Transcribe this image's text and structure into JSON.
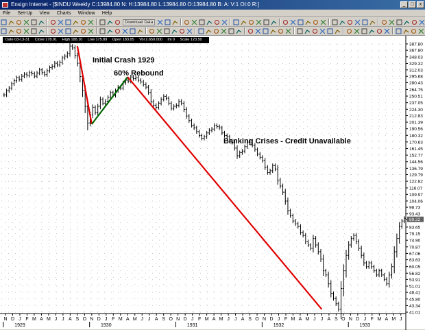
{
  "window": {
    "title": "Ensign Internet - [$INDU Weekly C:13984.80 N: H:13984.80 L:13984.80 O:13984.80 B: A: V:1 OI:0 R:]",
    "minimize": "_",
    "maximize": "□",
    "close": "x"
  },
  "menu": [
    "File",
    "Set-Up",
    "View",
    "Charts",
    "Window",
    "Help"
  ],
  "toolbar": {
    "download_label": "Download Data",
    "combo_value": ""
  },
  "infobar": {
    "date": "Date 03-13-31",
    "close": "Close 178.91",
    "high": "High 188.10",
    "low": "Low 175.89",
    "open": "Open 183.85",
    "vol": "Vol 2.650.000",
    "int": "Int 0",
    "scale": "Scale 123.50"
  },
  "annotations": {
    "initial_crash": "Initial Crash 1929",
    "rebound": "60% Rebound",
    "banking": "Banking Crises - Credit Unavailable"
  },
  "chart_data": {
    "type": "bar",
    "title": "",
    "price_axis_labels": [
      "387.80",
      "367.80",
      "348.03",
      "329.32",
      "312.03",
      "295.68",
      "280.43",
      "264.75",
      "250.51",
      "237.05",
      "224.30",
      "212.83",
      "201.39",
      "190.56",
      "180.32",
      "170.63",
      "161.45",
      "152.77",
      "144.56",
      "136.79",
      "129.79",
      "122.82",
      "116.07",
      "109.97",
      "104.06",
      "98.73",
      "93.43",
      "89.22",
      "83.65",
      "79.15",
      "74.90",
      "70.87",
      "67.06",
      "63.63",
      "60.05",
      "56.82",
      "53.91",
      "51.01",
      "48.41",
      "45.80",
      "43.34",
      "41.01"
    ],
    "current_price": "89.22",
    "x_month_labels": [
      "N",
      "D",
      "J",
      "F",
      "M",
      "A",
      "M",
      "J",
      "J",
      "A",
      "S",
      "O",
      "N",
      "D",
      "J",
      "F",
      "M",
      "A",
      "M",
      "J",
      "J",
      "A",
      "S",
      "O",
      "N",
      "D",
      "J",
      "F",
      "M",
      "A",
      "M",
      "J",
      "J",
      "A",
      "S",
      "O",
      "N",
      "D",
      "J",
      "F",
      "M",
      "A",
      "M",
      "J",
      "J",
      "A",
      "S",
      "O",
      "N",
      "D",
      "J",
      "F",
      "M",
      "A",
      "M",
      "J"
    ],
    "x_year_labels": [
      "1929",
      "1930",
      "1931",
      "1932",
      "1933"
    ],
    "scale": "log",
    "y_range": [
      41.01,
      387.8
    ],
    "trend_lines": [
      {
        "name": "crash",
        "color": "#e00000",
        "from": {
          "date": "1929-09",
          "value": 381
        },
        "to": {
          "date": "1929-11",
          "value": 198
        }
      },
      {
        "name": "rebound",
        "color": "#006400",
        "from": {
          "date": "1929-11",
          "value": 198
        },
        "to": {
          "date": "1930-04",
          "value": 294
        }
      },
      {
        "name": "decline",
        "color": "#e00000",
        "from": {
          "date": "1930-04",
          "value": 294
        },
        "to": {
          "date": "1932-07",
          "value": 42
        }
      }
    ],
    "series": [
      {
        "values": [
          253,
          262,
          268,
          278,
          285,
          292,
          288,
          296,
          301,
          298,
          305,
          302,
          296,
          304,
          312,
          305,
          300,
          310,
          318,
          322,
          330,
          325,
          332,
          345,
          350,
          358,
          381,
          375,
          352,
          330,
          295,
          262,
          230,
          200,
          214,
          228,
          218,
          230,
          244,
          236,
          240,
          248,
          258,
          252,
          262,
          270,
          268,
          280,
          286,
          284,
          294,
          290,
          292,
          286,
          282,
          276,
          270,
          258,
          240,
          232,
          228,
          236,
          244,
          250,
          246,
          236,
          226,
          230,
          232,
          240,
          236,
          224,
          212,
          204,
          196,
          192,
          186,
          180,
          176,
          178,
          184,
          188,
          190,
          196,
          194,
          192,
          184,
          180,
          178,
          172,
          170,
          162,
          152,
          156,
          158,
          164,
          170,
          172,
          166,
          160,
          154,
          150,
          146,
          138,
          132,
          134,
          140,
          136,
          124,
          118,
          112,
          104,
          96,
          92,
          88,
          86,
          84,
          80,
          78,
          74,
          72,
          70,
          76,
          72,
          68,
          64,
          58,
          56,
          52,
          48,
          46,
          44,
          42,
          50,
          58,
          66,
          72,
          76,
          78,
          74,
          70,
          66,
          62,
          60,
          62,
          60,
          58,
          56,
          58,
          56,
          54,
          52,
          56,
          60,
          68,
          76,
          84,
          88,
          90
        ]
      }
    ]
  }
}
